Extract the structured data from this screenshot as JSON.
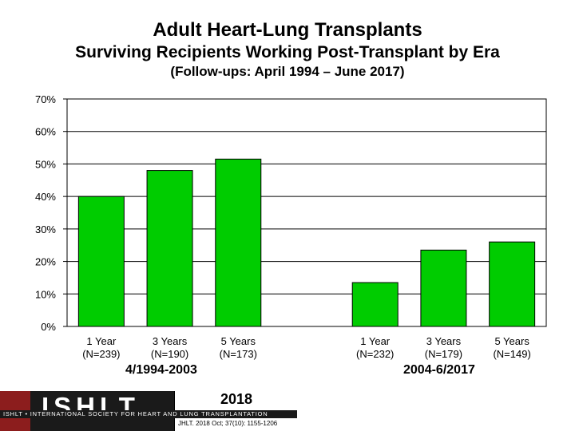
{
  "header": {
    "title": "Adult Heart-Lung Transplants",
    "subtitle": "Surviving Recipients Working Post-Transplant by Era",
    "note": "(Follow-ups: April 1994 – June 2017)"
  },
  "chart_data": {
    "type": "bar",
    "ylim": [
      0,
      70
    ],
    "yticks": [
      0,
      10,
      20,
      30,
      40,
      50,
      60,
      70
    ],
    "ytick_labels": [
      "0%",
      "10%",
      "20%",
      "30%",
      "40%",
      "50%",
      "60%",
      "70%"
    ],
    "grid": true,
    "bar_color": "#00cc00",
    "groups": [
      {
        "era": "4/1994-2003",
        "bars": [
          {
            "label": "1 Year",
            "n": "(N=239)",
            "value": 40.0
          },
          {
            "label": "3 Years",
            "n": "(N=190)",
            "value": 48.0
          },
          {
            "label": "5 Years",
            "n": "(N=173)",
            "value": 51.5
          }
        ]
      },
      {
        "era": "2004-6/2017",
        "bars": [
          {
            "label": "1 Year",
            "n": "(N=232)",
            "value": 13.5
          },
          {
            "label": "3 Years",
            "n": "(N=179)",
            "value": 23.5
          },
          {
            "label": "5 Years",
            "n": "(N=149)",
            "value": 26.0
          }
        ]
      }
    ]
  },
  "footer": {
    "logo": "ISHLT",
    "org": "ISHLT • INTERNATIONAL SOCIETY FOR HEART AND LUNG TRANSPLANTATION",
    "year": "2018",
    "citation": "JHLT. 2018 Oct; 37(10): 1155-1206"
  }
}
